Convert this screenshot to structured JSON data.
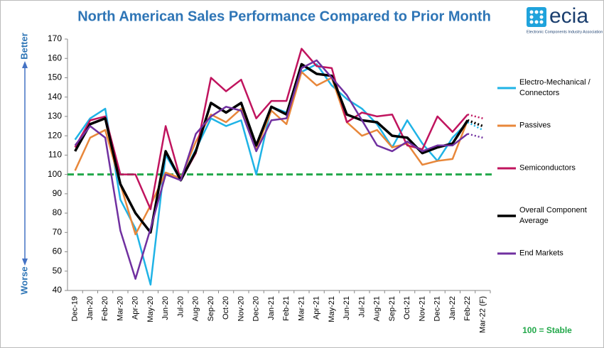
{
  "chart_data": {
    "type": "line",
    "title": "North American Sales Performance Compared to Prior Month",
    "categories": [
      "Dec-19",
      "Jan-20",
      "Feb-20",
      "Mar-20",
      "Apr-20",
      "May-20",
      "Jun-20",
      "Jul-20",
      "Aug-20",
      "Sep-20",
      "Oct-20",
      "Nov-20",
      "Dec-20",
      "Jan-21",
      "Feb-21",
      "Mar-21",
      "Apr-21",
      "May-21",
      "Jun-21",
      "Jul-21",
      "Aug-21",
      "Sep-21",
      "Oct-21",
      "Nov-21",
      "Dec-21",
      "Jan-22",
      "Feb-22",
      "Mar-22 (F)"
    ],
    "series": [
      {
        "name": "Electro-Mechanical / Connectors",
        "color": "#1fb3e6",
        "values": [
          118,
          129,
          134,
          87,
          72,
          43,
          110,
          97,
          113,
          129,
          125,
          128,
          100,
          135,
          132,
          153,
          157,
          146,
          139,
          134,
          126,
          114,
          128,
          116,
          107,
          119,
          127,
          123
        ]
      },
      {
        "name": "Passives",
        "color": "#e8873a",
        "values": [
          102,
          119,
          123,
          95,
          69,
          84,
          101,
          98,
          117,
          131,
          127,
          134,
          113,
          133,
          126,
          153,
          146,
          150,
          127,
          120,
          123,
          114,
          116,
          105,
          107,
          108,
          128,
          125
        ]
      },
      {
        "name": "Semiconductors",
        "color": "#c0145e",
        "values": [
          114,
          128,
          130,
          100,
          100,
          82,
          125,
          97,
          111,
          150,
          143,
          149,
          129,
          138,
          138,
          165,
          156,
          155,
          127,
          132,
          130,
          131,
          115,
          113,
          130,
          122,
          131,
          129
        ]
      },
      {
        "name": "Overall Component Average",
        "color": "#000000",
        "values": [
          112,
          126,
          129,
          95,
          80,
          70,
          112,
          97,
          112,
          137,
          132,
          137,
          115,
          135,
          131,
          157,
          152,
          151,
          131,
          128,
          127,
          120,
          119,
          111,
          114,
          116,
          128,
          125
        ]
      },
      {
        "name": "End Markets",
        "color": "#7030a0",
        "values": [
          115,
          125,
          119,
          71,
          46,
          72,
          100,
          97,
          121,
          130,
          135,
          133,
          112,
          128,
          129,
          155,
          159,
          150,
          141,
          128,
          115,
          112,
          117,
          112,
          115,
          115,
          121,
          119
        ]
      }
    ],
    "ylim": [
      40,
      170
    ],
    "yticks": [
      40,
      50,
      60,
      70,
      80,
      90,
      100,
      110,
      120,
      130,
      140,
      150,
      160,
      170
    ],
    "grid": false,
    "last_point_dotted": true,
    "reference_line": {
      "value": 100,
      "color": "#22a84a",
      "label": "100 = Stable"
    },
    "annotations": {
      "better": "Better",
      "worse": "Worse"
    },
    "logo": {
      "name": "ecia",
      "tagline": "Electronic Components Industry Association"
    }
  }
}
